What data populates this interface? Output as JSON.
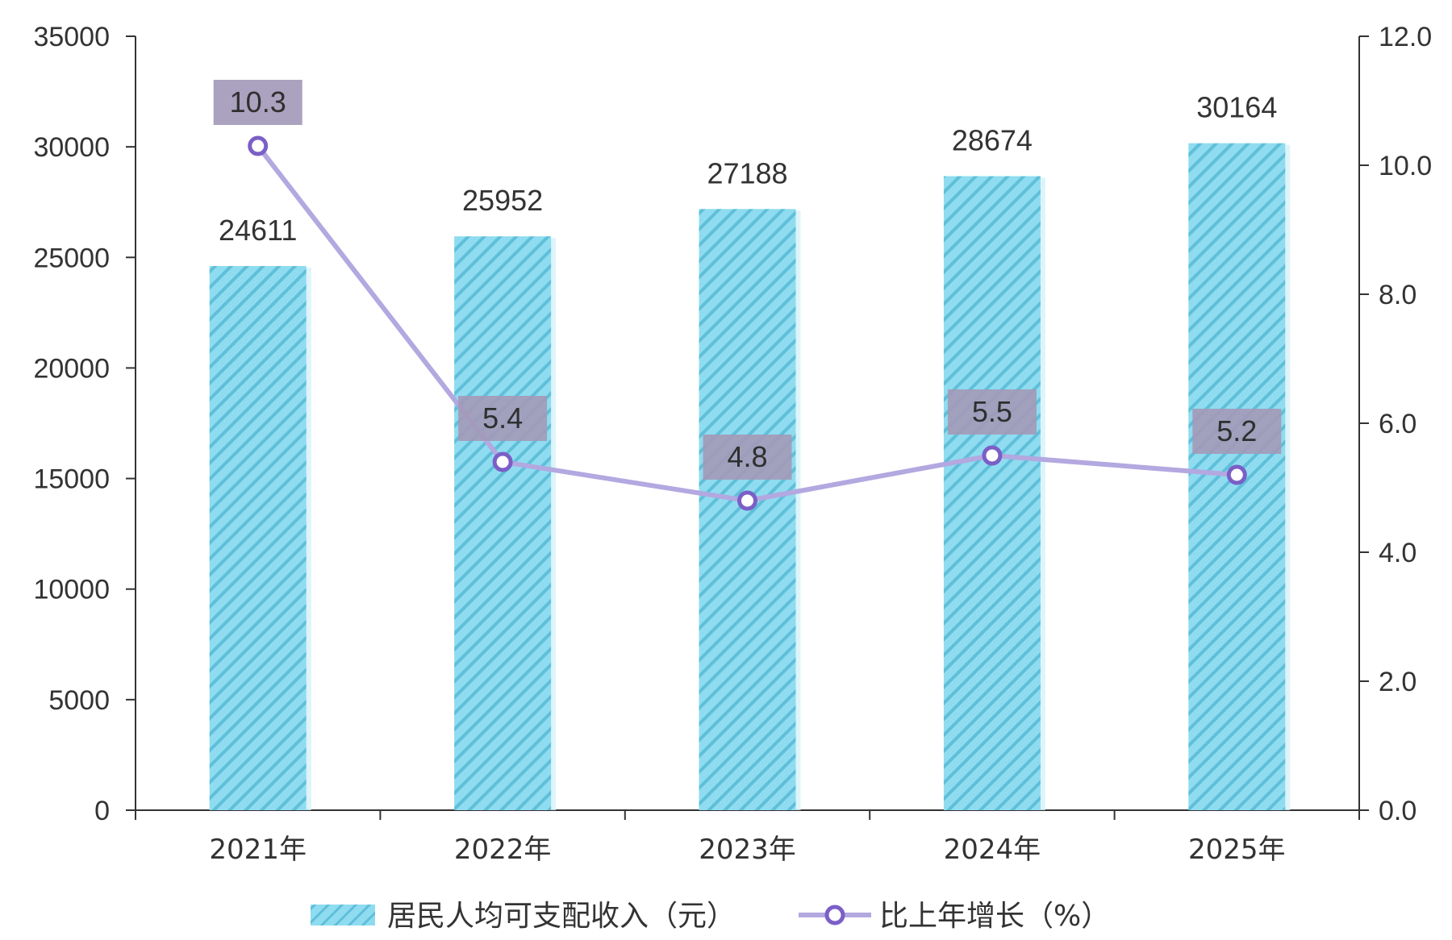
{
  "chart_data": {
    "type": "bar",
    "categories": [
      "2021年",
      "2022年",
      "2023年",
      "2024年",
      "2025年"
    ],
    "series": [
      {
        "name": "居民人均可支配收入（元）",
        "kind": "bar",
        "axis": "left",
        "values": [
          24611,
          25952,
          27188,
          28674,
          30164
        ],
        "color": "#8fdcf0"
      },
      {
        "name": "比上年增长（%）",
        "kind": "line",
        "axis": "right",
        "values": [
          10.3,
          5.4,
          4.8,
          5.5,
          5.2
        ],
        "color": "#b3a8e0"
      }
    ],
    "y_left": {
      "min": 0,
      "max": 35000,
      "ticks": [
        "0",
        "5000",
        "10000",
        "15000",
        "20000",
        "25000",
        "30000",
        "35000"
      ]
    },
    "y_right": {
      "min": 0,
      "max": 12,
      "ticks": [
        "0.0",
        "2.0",
        "4.0",
        "6.0",
        "8.0",
        "10.0",
        "12.0"
      ]
    },
    "bar_labels": [
      "24611",
      "25952",
      "27188",
      "28674",
      "30164"
    ],
    "point_labels": [
      "10.3",
      "5.4",
      "4.8",
      "5.5",
      "5.2"
    ],
    "legend": {
      "position": "bottom"
    },
    "colors": {
      "bar_fill": "#8fdcf0",
      "bar_stripe": "#5bbad6",
      "line": "#b3a8e0",
      "marker_stroke": "#7b5fc7",
      "label_box": "#a39ab8",
      "axis": "#333333"
    }
  }
}
